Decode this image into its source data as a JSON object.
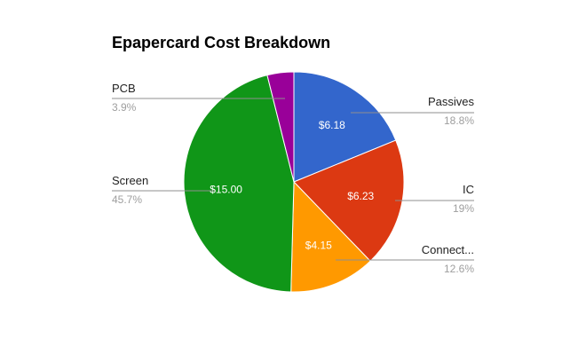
{
  "chart_data": {
    "type": "pie",
    "title": "Epapercard Cost Breakdown",
    "slices": [
      {
        "name": "Passives",
        "value_label": "$6.18",
        "value": 6.18,
        "percent_label": "18.8%",
        "color": "#3366cc"
      },
      {
        "name": "IC",
        "value_label": "$6.23",
        "value": 6.23,
        "percent_label": "19%",
        "color": "#dc3912"
      },
      {
        "name": "Connect...",
        "value_label": "$4.15",
        "value": 4.15,
        "percent_label": "12.6%",
        "color": "#ff9900"
      },
      {
        "name": "Screen",
        "value_label": "$15.00",
        "value": 15.0,
        "percent_label": "45.7%",
        "color": "#109618"
      },
      {
        "name": "PCB",
        "value_label": "",
        "value": 1.28,
        "percent_label": "3.9%",
        "color": "#990099"
      }
    ],
    "start_angle": "12 o'clock",
    "direction": "clockwise",
    "legend": "labeled"
  }
}
